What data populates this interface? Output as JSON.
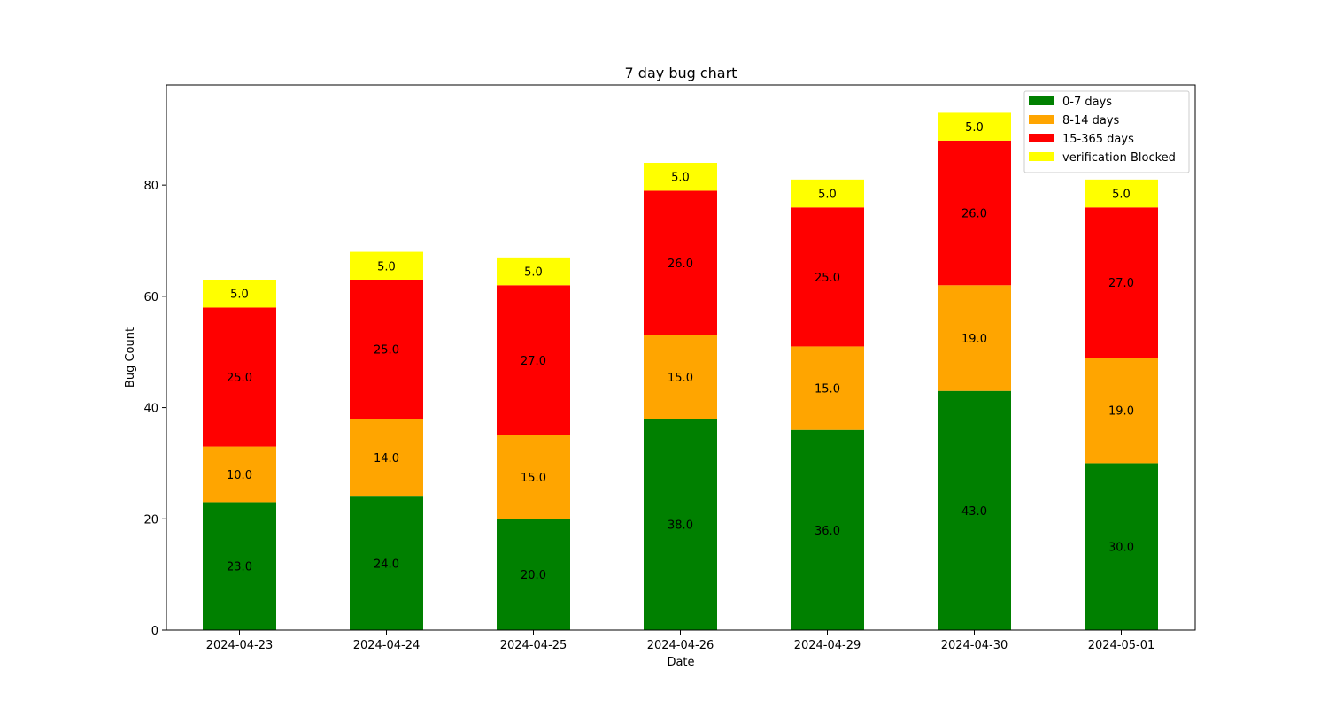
{
  "chart_data": {
    "type": "bar",
    "stacked": true,
    "title": "7 day bug chart",
    "xlabel": "Date",
    "ylabel": "Bug Count",
    "categories": [
      "2024-04-23",
      "2024-04-24",
      "2024-04-25",
      "2024-04-26",
      "2024-04-29",
      "2024-04-30",
      "2024-05-01"
    ],
    "ylim": [
      0,
      98
    ],
    "yticks": [
      0,
      20,
      40,
      60,
      80
    ],
    "grid": false,
    "legend_position": "top-right",
    "series": [
      {
        "name": "0-7 days",
        "color": "#008000",
        "values": [
          23,
          24,
          20,
          38,
          36,
          43,
          30
        ]
      },
      {
        "name": "8-14 days",
        "color": "#ffa500",
        "values": [
          10,
          14,
          15,
          15,
          15,
          19,
          19
        ]
      },
      {
        "name": "15-365 days",
        "color": "#ff0000",
        "values": [
          25,
          25,
          27,
          26,
          25,
          26,
          27
        ]
      },
      {
        "name": "verification Blocked",
        "color": "#ffff00",
        "values": [
          5,
          5,
          5,
          5,
          5,
          5,
          5
        ]
      }
    ]
  }
}
